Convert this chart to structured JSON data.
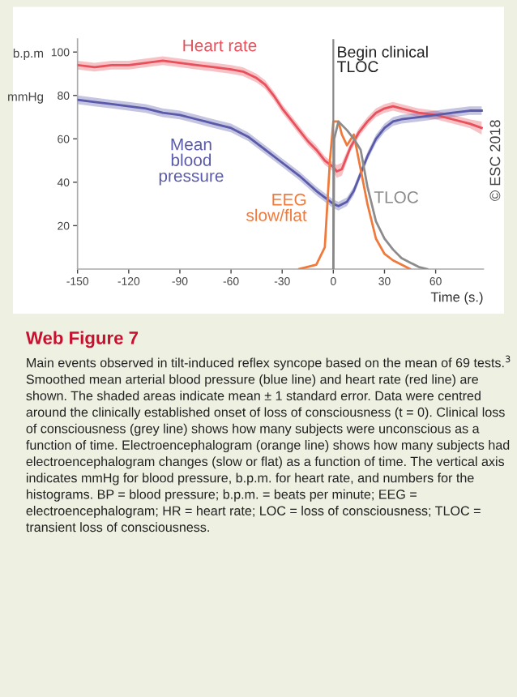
{
  "chart_data": {
    "type": "line",
    "title": "Web Figure 7",
    "xlabel": "Time (s.)",
    "xlim": [
      -150,
      88
    ],
    "xticks": [
      -150,
      -120,
      -90,
      -60,
      -30,
      0,
      30,
      60
    ],
    "ylim": [
      0,
      106
    ],
    "yticks": [
      20,
      40,
      60,
      80,
      100
    ],
    "grid": false,
    "legend": false,
    "marker": "none",
    "line_style": "solid",
    "series": [
      {
        "name": "Heart rate",
        "color": "#e8505b",
        "x": [
          -150,
          -140,
          -130,
          -120,
          -110,
          -100,
          -90,
          -80,
          -70,
          -60,
          -53,
          -45,
          -40,
          -35,
          -30,
          -25,
          -20,
          -15,
          -10,
          -5,
          0,
          2,
          5,
          10,
          15,
          20,
          25,
          30,
          35,
          40,
          50,
          60,
          70,
          80,
          87
        ],
        "values": [
          94,
          93,
          94,
          94,
          95,
          96,
          95,
          94,
          93,
          92,
          91,
          88,
          85,
          80,
          74,
          69,
          64,
          59,
          55,
          50,
          47,
          45,
          46,
          56,
          63,
          68,
          72,
          74,
          75,
          74,
          72,
          71,
          69,
          67,
          65
        ],
        "lower": [
          92,
          91,
          92,
          92,
          93,
          94,
          93,
          92,
          91,
          90,
          89,
          86,
          83,
          78,
          72,
          67,
          62,
          57,
          53,
          48,
          45,
          42,
          43,
          54,
          61,
          66,
          70,
          72,
          73,
          72,
          70,
          69,
          67,
          65,
          62
        ],
        "upper": [
          96,
          95,
          96,
          96,
          97,
          98,
          97,
          96,
          95,
          94,
          93,
          90,
          87,
          82,
          76,
          71,
          66,
          61,
          57,
          52,
          49,
          48,
          49,
          58,
          65,
          70,
          74,
          76,
          77,
          76,
          74,
          73,
          71,
          69,
          68
        ]
      },
      {
        "name": "Mean\nblood\npressure",
        "color": "#5a5aaa",
        "x": [
          -150,
          -140,
          -130,
          -120,
          -110,
          -100,
          -90,
          -80,
          -70,
          -60,
          -50,
          -40,
          -30,
          -20,
          -10,
          -5,
          0,
          3,
          8,
          12,
          15,
          20,
          25,
          30,
          35,
          40,
          50,
          60,
          70,
          80,
          87
        ],
        "values": [
          78,
          77,
          76,
          75,
          74,
          72,
          71,
          69,
          67,
          65,
          61,
          55,
          49,
          43,
          36,
          33,
          30,
          29,
          31,
          36,
          42,
          52,
          60,
          65,
          68,
          69,
          70,
          71,
          72,
          73,
          73
        ],
        "lower": [
          76,
          75,
          74,
          73,
          72,
          70,
          69,
          67,
          65,
          63,
          59,
          53,
          47,
          41,
          34,
          31,
          28,
          27,
          29,
          34,
          40,
          50,
          58,
          63,
          66,
          67,
          68,
          69,
          70,
          71,
          71
        ],
        "upper": [
          80,
          79,
          78,
          77,
          76,
          74,
          73,
          71,
          69,
          67,
          63,
          57,
          51,
          45,
          38,
          35,
          32,
          31,
          33,
          38,
          44,
          54,
          62,
          67,
          70,
          71,
          72,
          73,
          74,
          75,
          75
        ]
      },
      {
        "name": "EEG\nslow/flat",
        "color": "#f07a3c",
        "x": [
          -20,
          -10,
          -5,
          -2,
          0,
          3,
          5,
          8,
          12,
          15,
          20,
          25,
          30,
          35,
          40,
          45
        ],
        "values": [
          0,
          2,
          10,
          50,
          68,
          68,
          62,
          57,
          62,
          50,
          30,
          14,
          7,
          4,
          2,
          0
        ]
      },
      {
        "name": "TLOC",
        "color": "#8c8c8c",
        "x": [
          0,
          0.5,
          3,
          8,
          12,
          16,
          20,
          25,
          30,
          35,
          40,
          45,
          50,
          55
        ],
        "values": [
          0,
          60,
          68,
          64,
          60,
          55,
          38,
          22,
          14,
          9,
          5,
          3,
          1,
          0
        ]
      }
    ],
    "ref_lines": [
      {
        "axis": "x",
        "value": 0,
        "label": "Begin clinical\nTLOC",
        "color": "#888888",
        "line_style": "solid"
      }
    ],
    "annotations": [
      "b.p.m",
      "mmHg",
      "© ESC 2018",
      "Main events observed in tilt-induced reflex syncope based on the mean of 69 tests.$^{3}$ Smoothed mean arterial blood pressure (blue line) and heart rate (red line) are shown. The shaded areas indicate mean ± 1 standard error. Data were centred around the clinically established onset of loss of consciousness (t = 0). Clinical loss of consciousness (grey line) shows how many subjects were unconscious as a function of time. Electroencephalogram (orange line) shows how many subjects had electroencephalogram changes (slow or flat) as a function of time. The vertical axis indicates mmHg for blood pressure, b.p.m. for heart rate, and numbers for the histograms. BP = blood pressure; b.p.m. = beats per minute; EEG = electroencephalogram; HR = heart rate; LOC = loss of consciousness; TLOC = transient loss of consciousness."
    ]
  }
}
